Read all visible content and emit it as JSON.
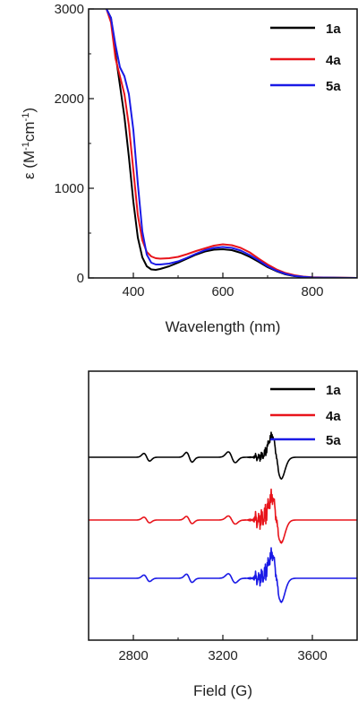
{
  "chart_data": [
    {
      "type": "line",
      "xlabel": "Wavelength (nm)",
      "ylabel_main": "ε (M",
      "ylabel_sup1": "-1",
      "ylabel_mid": "cm",
      "ylabel_sup2": "-1",
      "ylabel_end": ")",
      "xlim": [
        300,
        900
      ],
      "ylim": [
        0,
        3000
      ],
      "xticks": [
        400,
        600,
        800
      ],
      "xtick_labels": [
        "400",
        "600",
        "800"
      ],
      "yticks": [
        0,
        1000,
        2000,
        3000
      ],
      "ytick_labels": [
        "0",
        "1000",
        "2000",
        "3000"
      ],
      "legend_position": "top-right",
      "series": [
        {
          "name": "1a",
          "color": "#000000",
          "x": [
            340,
            350,
            360,
            370,
            380,
            390,
            400,
            410,
            420,
            430,
            440,
            450,
            460,
            480,
            500,
            520,
            540,
            560,
            580,
            600,
            620,
            640,
            660,
            680,
            700,
            720,
            740,
            760,
            780,
            800,
            850,
            900
          ],
          "y": [
            3000,
            2900,
            2500,
            2150,
            1800,
            1350,
            850,
            450,
            230,
            130,
            95,
            90,
            100,
            130,
            170,
            215,
            260,
            295,
            315,
            320,
            310,
            280,
            235,
            180,
            120,
            75,
            40,
            20,
            10,
            5,
            2,
            0
          ]
        },
        {
          "name": "4a",
          "color": "#e8141b",
          "x": [
            340,
            350,
            360,
            370,
            380,
            390,
            400,
            410,
            420,
            430,
            440,
            450,
            460,
            480,
            500,
            520,
            540,
            560,
            580,
            600,
            620,
            640,
            660,
            680,
            700,
            720,
            740,
            760,
            780,
            800,
            850,
            900
          ],
          "y": [
            3000,
            2850,
            2450,
            2250,
            2050,
            1700,
            1200,
            700,
            420,
            290,
            240,
            220,
            215,
            220,
            235,
            265,
            300,
            330,
            360,
            375,
            365,
            335,
            285,
            215,
            150,
            95,
            55,
            30,
            15,
            8,
            3,
            0
          ]
        },
        {
          "name": "5a",
          "color": "#1a1ae6",
          "x": [
            340,
            350,
            360,
            370,
            380,
            390,
            400,
            410,
            420,
            430,
            440,
            450,
            460,
            480,
            500,
            520,
            540,
            560,
            580,
            600,
            620,
            640,
            660,
            680,
            700,
            720,
            740,
            760,
            780,
            800,
            850,
            900
          ],
          "y": [
            3000,
            2900,
            2600,
            2350,
            2250,
            2050,
            1650,
            1050,
            520,
            260,
            170,
            150,
            150,
            160,
            185,
            225,
            270,
            310,
            335,
            345,
            335,
            305,
            255,
            195,
            130,
            80,
            45,
            22,
            12,
            5,
            2,
            0
          ]
        }
      ]
    },
    {
      "type": "line",
      "xlabel": "Field (G)",
      "xlim": [
        2600,
        3800
      ],
      "xticks": [
        2800,
        3200,
        3600
      ],
      "xtick_labels": [
        "2800",
        "3200",
        "3600"
      ],
      "y_ticks_shown": false,
      "legend_position": "top-right",
      "series": [
        {
          "name": "1a",
          "color": "#000000",
          "offset": 0.0
        },
        {
          "name": "4a",
          "color": "#e8141b",
          "offset": -1.0
        },
        {
          "name": "5a",
          "color": "#1a1ae6",
          "offset": -2.0
        }
      ]
    }
  ]
}
